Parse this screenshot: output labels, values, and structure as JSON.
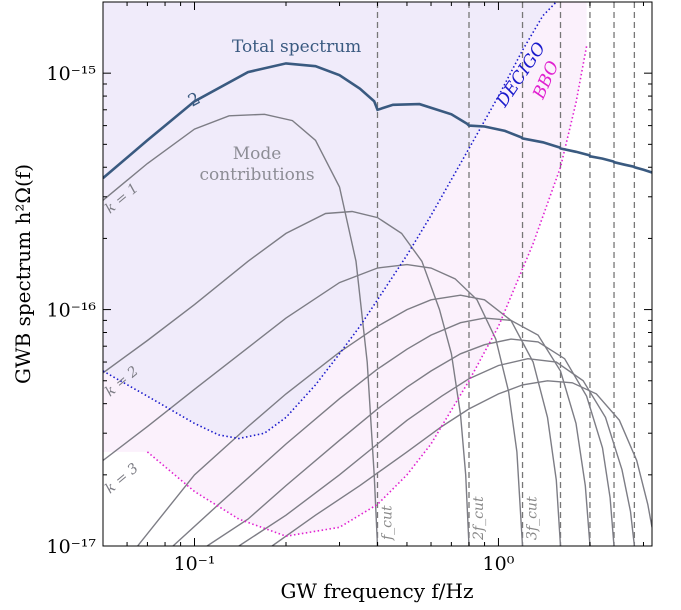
{
  "chart_data": {
    "type": "line",
    "xlabel": "GW frequency  f/Hz",
    "ylabel": "GWB spectrum  h²Ω(f)",
    "x_scale": "log",
    "y_scale": "log",
    "xlim": [
      0.05,
      3.2
    ],
    "ylim": [
      1e-17,
      2e-15
    ],
    "x_ticks": [
      {
        "value": 0.1,
        "label": "10⁻¹"
      },
      {
        "value": 1.0,
        "label": "10⁰"
      }
    ],
    "y_ticks": [
      {
        "value": 1e-17,
        "label": "10⁻¹⁷"
      },
      {
        "value": 1e-16,
        "label": "10⁻¹⁶"
      },
      {
        "value": 1e-15,
        "label": "10⁻¹⁵"
      }
    ],
    "grid": false,
    "legend": "none",
    "f_cut": 0.4,
    "harmonic_lines": [
      {
        "multiple": 1,
        "label": "f_cut"
      },
      {
        "multiple": 2,
        "label": "2f_cut"
      },
      {
        "multiple": 3,
        "label": "3f_cut"
      },
      {
        "multiple": 4,
        "label": ""
      },
      {
        "multiple": 5,
        "label": ""
      },
      {
        "multiple": 6,
        "label": ""
      },
      {
        "multiple": 7,
        "label": ""
      }
    ],
    "colors": {
      "total": "#3a5a80",
      "mode": "#7d7d85",
      "decigo": "#1a1acc",
      "bbo": "#e020d0",
      "decigo_fill": "#f0ebfa",
      "bbo_fill": "#fbf1fc",
      "cut_line": "#777777"
    },
    "series": [
      {
        "name": "Total spectrum",
        "role": "total",
        "x": [
          0.05,
          0.07,
          0.1,
          0.15,
          0.2,
          0.25,
          0.3,
          0.35,
          0.39,
          0.4,
          0.45,
          0.55,
          0.7,
          0.79,
          0.8,
          0.9,
          1.05,
          1.19,
          1.2,
          1.4,
          1.59,
          1.6,
          1.8,
          1.99,
          2.0,
          2.2,
          2.39,
          2.4,
          2.6,
          2.79,
          2.8,
          3.0,
          3.2
        ],
        "y": [
          3.6e-16,
          5.2e-16,
          7.6e-16,
          1.01e-15,
          1.1e-15,
          1.07e-15,
          9.8e-16,
          8.6e-16,
          7.6e-16,
          7e-16,
          7.35e-16,
          7.4e-16,
          6.7e-16,
          6.1e-16,
          6e-16,
          5.95e-16,
          5.7e-16,
          5.35e-16,
          5.3e-16,
          5.1e-16,
          4.85e-16,
          4.8e-16,
          4.65e-16,
          4.5e-16,
          4.45e-16,
          4.35e-16,
          4.23e-16,
          4.2e-16,
          4.1e-16,
          4.02e-16,
          4e-16,
          3.9e-16,
          3.8e-16
        ]
      },
      {
        "name": "Mode k = 1",
        "role": "mode",
        "x": [
          0.05,
          0.07,
          0.1,
          0.13,
          0.17,
          0.21,
          0.25,
          0.3,
          0.34,
          0.37,
          0.39,
          0.4
        ],
        "y": [
          2.9e-16,
          4.15e-16,
          5.8e-16,
          6.6e-16,
          6.7e-16,
          6.3e-16,
          5.2e-16,
          3.3e-16,
          1.6e-16,
          6e-17,
          2e-17,
          1e-17
        ]
      },
      {
        "name": "Mode k = 2",
        "role": "mode",
        "x": [
          0.05,
          0.07,
          0.1,
          0.15,
          0.2,
          0.27,
          0.33,
          0.4,
          0.48,
          0.56,
          0.64,
          0.7,
          0.75,
          0.78,
          0.8
        ],
        "y": [
          5.4e-17,
          7.4e-17,
          1.05e-16,
          1.6e-16,
          2.1e-16,
          2.55e-16,
          2.6e-16,
          2.45e-16,
          2.1e-16,
          1.6e-16,
          1e-16,
          6.5e-17,
          3.6e-17,
          2e-17,
          1e-17
        ]
      },
      {
        "name": "Mode k = 3",
        "role": "mode",
        "x": [
          0.05,
          0.07,
          0.1,
          0.15,
          0.2,
          0.3,
          0.4,
          0.5,
          0.6,
          0.72,
          0.85,
          0.98,
          1.08,
          1.15,
          1.2
        ],
        "y": [
          2.3e-17,
          3.2e-17,
          4.6e-17,
          6.9e-17,
          9.2e-17,
          1.3e-16,
          1.5e-16,
          1.55e-16,
          1.5e-16,
          1.35e-16,
          1.1e-16,
          7.5e-17,
          4.5e-17,
          2.5e-17,
          1e-17
        ]
      },
      {
        "name": "Mode k = 4",
        "role": "mode",
        "x": [
          0.065,
          0.1,
          0.15,
          0.2,
          0.3,
          0.4,
          0.5,
          0.6,
          0.75,
          0.9,
          1.1,
          1.3,
          1.45,
          1.55,
          1.6
        ],
        "y": [
          1e-17,
          2e-17,
          3.2e-17,
          4.4e-17,
          6.6e-17,
          8.5e-17,
          1e-16,
          1.1e-16,
          1.15e-16,
          1.1e-16,
          9e-17,
          6e-17,
          3.5e-17,
          1.9e-17,
          1e-17
        ]
      },
      {
        "name": "Mode k = 5",
        "role": "mode",
        "x": [
          0.085,
          0.12,
          0.2,
          0.3,
          0.4,
          0.5,
          0.6,
          0.75,
          0.9,
          1.1,
          1.35,
          1.6,
          1.8,
          1.93,
          2.0
        ],
        "y": [
          1e-17,
          1.5e-17,
          2.7e-17,
          4.2e-17,
          5.6e-17,
          6.8e-17,
          7.8e-17,
          8.8e-17,
          9.2e-17,
          9e-17,
          7.8e-17,
          5.5e-17,
          3.3e-17,
          1.8e-17,
          1e-17
        ]
      },
      {
        "name": "Mode k = 6",
        "role": "mode",
        "x": [
          0.11,
          0.15,
          0.2,
          0.3,
          0.4,
          0.5,
          0.6,
          0.75,
          0.9,
          1.1,
          1.35,
          1.65,
          1.95,
          2.2,
          2.33,
          2.4
        ],
        "y": [
          1e-17,
          1.3e-17,
          1.8e-17,
          2.8e-17,
          3.8e-17,
          4.7e-17,
          5.5e-17,
          6.5e-17,
          7.1e-17,
          7.5e-17,
          7.3e-17,
          6.2e-17,
          4.3e-17,
          2.6e-17,
          1.6e-17,
          1e-17
        ]
      },
      {
        "name": "Mode k = 7",
        "role": "mode",
        "x": [
          0.14,
          0.2,
          0.3,
          0.4,
          0.5,
          0.65,
          0.8,
          1.0,
          1.25,
          1.55,
          1.9,
          2.25,
          2.55,
          2.72,
          2.8
        ],
        "y": [
          1e-17,
          1.35e-17,
          2e-17,
          2.7e-17,
          3.4e-17,
          4.3e-17,
          5.1e-17,
          5.8e-17,
          6.2e-17,
          6e-17,
          5e-17,
          3.5e-17,
          2.1e-17,
          1.4e-17,
          1e-17
        ]
      },
      {
        "name": "Mode k = 8",
        "role": "mode",
        "x": [
          0.18,
          0.25,
          0.35,
          0.5,
          0.65,
          0.8,
          1.0,
          1.2,
          1.45,
          1.75,
          2.1,
          2.5,
          2.85,
          3.1,
          3.2
        ],
        "y": [
          1e-17,
          1.35e-17,
          1.8e-17,
          2.5e-17,
          3.2e-17,
          3.8e-17,
          4.4e-17,
          4.8e-17,
          5e-17,
          4.9e-17,
          4.4e-17,
          3.4e-17,
          2.3e-17,
          1.5e-17,
          1.2e-17
        ]
      },
      {
        "name": "DECIGO",
        "role": "decigo",
        "x": [
          0.05,
          0.07,
          0.1,
          0.12,
          0.14,
          0.17,
          0.2,
          0.25,
          0.3,
          0.35,
          0.4,
          0.5,
          0.6,
          0.8,
          1.0,
          1.2,
          1.4,
          1.55
        ],
        "y": [
          5.5e-17,
          4.3e-17,
          3.3e-17,
          2.95e-17,
          2.85e-17,
          3e-17,
          3.5e-17,
          4.8e-17,
          6.5e-17,
          8.5e-17,
          1.1e-16,
          1.7e-16,
          2.5e-16,
          4.8e-16,
          8e-16,
          1.25e-15,
          1.75e-15,
          2e-15
        ]
      },
      {
        "name": "BBO",
        "role": "bbo",
        "x": [
          0.07,
          0.1,
          0.14,
          0.2,
          0.3,
          0.4,
          0.5,
          0.6,
          0.8,
          1.0,
          1.3,
          1.6,
          1.8,
          1.95
        ],
        "y": [
          2.5e-17,
          1.7e-17,
          1.3e-17,
          1.1e-17,
          1.2e-17,
          1.5e-17,
          2e-17,
          2.7e-17,
          5e-17,
          8.5e-17,
          1.9e-16,
          4e-16,
          7.5e-16,
          1.3e-15
        ]
      }
    ],
    "annotations": {
      "total_label": "Total spectrum",
      "total_marker": "2",
      "mode_label_line1": "Mode",
      "mode_label_line2": "contributions",
      "decigo_label": "DECIGO",
      "bbo_label": "BBO",
      "k1_label": "k = 1",
      "k2_label": "k = 2",
      "k3_label": "k = 3"
    }
  }
}
